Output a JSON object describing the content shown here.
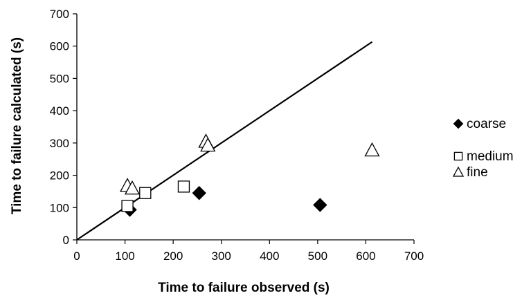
{
  "chart_data": {
    "type": "scatter",
    "title": "",
    "xlabel": "Time to failure observed (s)",
    "ylabel": "Time to failure calculated (s)",
    "xlim": [
      0,
      700
    ],
    "ylim": [
      0,
      700
    ],
    "xticks": [
      "0",
      "100",
      "200",
      "300",
      "400",
      "500",
      "600",
      "700"
    ],
    "yticks": [
      "0",
      "100",
      "200",
      "300",
      "400",
      "500",
      "600",
      "700"
    ],
    "grid": false,
    "legend_position": "right",
    "series": [
      {
        "name": "coarse",
        "marker": "filled-diamond",
        "color": "#000000",
        "points": [
          [
            110,
            93
          ],
          [
            254,
            145
          ],
          [
            505,
            108
          ]
        ]
      },
      {
        "name": "medium",
        "marker": "open-square",
        "color": "#000000",
        "points": [
          [
            105,
            105
          ],
          [
            142,
            145
          ],
          [
            222,
            165
          ]
        ]
      },
      {
        "name": "fine",
        "marker": "open-triangle",
        "color": "#000000",
        "points": [
          [
            105,
            168
          ],
          [
            115,
            160
          ],
          [
            268,
            305
          ],
          [
            272,
            293
          ],
          [
            613,
            278
          ]
        ]
      }
    ],
    "reference_line": {
      "from": [
        0,
        0
      ],
      "to": [
        613,
        613
      ],
      "color": "#000000"
    }
  }
}
